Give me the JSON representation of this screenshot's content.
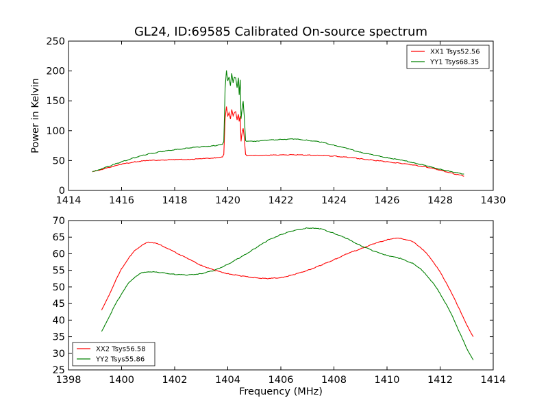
{
  "figure": {
    "title": "GL24, ID:69585 Calibrated On-source spectrum"
  },
  "chart_data": [
    {
      "type": "line",
      "title": "GL24, ID:69585 Calibrated On-source spectrum",
      "xlabel": "",
      "ylabel": "Power in Kelvin",
      "xlim": [
        1414,
        1430
      ],
      "ylim": [
        0,
        250
      ],
      "xticks": [
        "1414",
        "1416",
        "1418",
        "1420",
        "1422",
        "1424",
        "1426",
        "1428",
        "1430"
      ],
      "yticks": [
        "0",
        "50",
        "100",
        "150",
        "200",
        "250"
      ],
      "legend_position": "top-right",
      "grid": false,
      "series": [
        {
          "name": "XX1 Tsys52.56",
          "color": "#ff0000",
          "x": [
            1414.9,
            1415.5,
            1416,
            1416.5,
            1417,
            1417.5,
            1418,
            1418.5,
            1419,
            1419.5,
            1419.8,
            1419.85,
            1419.9,
            1419.95,
            1420.0,
            1420.05,
            1420.1,
            1420.15,
            1420.2,
            1420.25,
            1420.3,
            1420.35,
            1420.4,
            1420.43,
            1420.47,
            1420.5,
            1420.55,
            1420.58,
            1420.62,
            1420.67,
            1420.72,
            1421,
            1421.5,
            1422,
            1422.5,
            1423,
            1423.5,
            1424,
            1424.5,
            1425,
            1425.5,
            1426,
            1426.5,
            1427,
            1427.5,
            1428,
            1428.5,
            1428.9
          ],
          "y": [
            31,
            38,
            44,
            48,
            50,
            51,
            51.5,
            52,
            53,
            54.5,
            56,
            60,
            120,
            140,
            125,
            130,
            120,
            135,
            125,
            130,
            132,
            118,
            128,
            115,
            125,
            82,
            100,
            104,
            90,
            60,
            58,
            58.5,
            59,
            59.5,
            59.8,
            59.2,
            58.5,
            57.5,
            55.5,
            53,
            50.5,
            48,
            45.5,
            42.5,
            39,
            34,
            28,
            24
          ]
        },
        {
          "name": "YY1 Tsys68.35",
          "color": "#008000",
          "x": [
            1414.9,
            1415.5,
            1416,
            1416.5,
            1417,
            1417.5,
            1418,
            1418.5,
            1419,
            1419.5,
            1419.8,
            1419.85,
            1419.9,
            1419.95,
            1420.0,
            1420.05,
            1420.1,
            1420.15,
            1420.2,
            1420.25,
            1420.3,
            1420.35,
            1420.4,
            1420.43,
            1420.47,
            1420.5,
            1420.55,
            1420.58,
            1420.62,
            1420.67,
            1420.72,
            1421,
            1421.5,
            1422,
            1422.5,
            1423,
            1423.5,
            1424,
            1424.5,
            1425,
            1425.5,
            1426,
            1426.5,
            1427,
            1427.5,
            1428,
            1428.5,
            1428.9
          ],
          "y": [
            31,
            40,
            48,
            55,
            61,
            65,
            68,
            71,
            73,
            75,
            77,
            82,
            170,
            201,
            183,
            190,
            175,
            196,
            180,
            190,
            188,
            172,
            188,
            160,
            185,
            120,
            140,
            150,
            125,
            84,
            82,
            82.5,
            84,
            85.5,
            86,
            84,
            81,
            76,
            70,
            64,
            59,
            55,
            51,
            46.5,
            41,
            35.5,
            30.5,
            27.5
          ]
        }
      ]
    },
    {
      "type": "line",
      "title": "",
      "xlabel": "Frequency (MHz)",
      "ylabel": "",
      "xlim": [
        1398,
        1414
      ],
      "ylim": [
        25,
        70
      ],
      "xticks": [
        "1398",
        "1400",
        "1402",
        "1404",
        "1406",
        "1408",
        "1410",
        "1412",
        "1414"
      ],
      "yticks": [
        "25",
        "30",
        "35",
        "40",
        "45",
        "50",
        "55",
        "60",
        "65",
        "70"
      ],
      "legend_position": "bottom-left",
      "grid": false,
      "series": [
        {
          "name": "XX2 Tsys56.58",
          "color": "#ff0000",
          "x": [
            1399.25,
            1399.5,
            1399.75,
            1400,
            1400.25,
            1400.5,
            1400.75,
            1401,
            1401.25,
            1401.5,
            1401.75,
            1402,
            1402.5,
            1403,
            1403.5,
            1404,
            1404.5,
            1405,
            1405.5,
            1406,
            1406.5,
            1407,
            1407.5,
            1408,
            1408.5,
            1409,
            1409.5,
            1410,
            1410.25,
            1410.5,
            1410.75,
            1411,
            1411.25,
            1411.5,
            1411.75,
            1412,
            1412.25,
            1412.5,
            1412.75,
            1413,
            1413.25
          ],
          "y": [
            43,
            47,
            51.5,
            55.5,
            58.5,
            61,
            62.5,
            63.5,
            63.3,
            62.5,
            61.5,
            60.5,
            58.5,
            56.5,
            55,
            54,
            53.3,
            52.8,
            52.5,
            52.8,
            53.7,
            55,
            56.5,
            58.2,
            60,
            61.5,
            63,
            64.2,
            64.7,
            64.6,
            64.2,
            63.5,
            62,
            60,
            57.5,
            54.5,
            51,
            47,
            43,
            38.5,
            35
          ]
        },
        {
          "name": "YY2 Tsys55.86",
          "color": "#008000",
          "x": [
            1399.25,
            1399.5,
            1399.75,
            1400,
            1400.25,
            1400.5,
            1400.75,
            1401,
            1401.5,
            1402,
            1402.5,
            1403,
            1403.5,
            1404,
            1404.5,
            1405,
            1405.5,
            1406,
            1406.5,
            1407,
            1407.5,
            1408,
            1408.5,
            1409,
            1409.5,
            1410,
            1410.5,
            1411,
            1411.25,
            1411.5,
            1411.75,
            1412,
            1412.25,
            1412.5,
            1412.75,
            1413,
            1413.25
          ],
          "y": [
            36.5,
            40.5,
            44.5,
            48,
            51,
            53,
            54.2,
            54.6,
            54.3,
            53.8,
            53.6,
            54,
            55,
            56.8,
            59,
            61.5,
            64,
            65.8,
            67,
            67.8,
            67.5,
            66.2,
            64.5,
            62.5,
            60.8,
            59.5,
            58.6,
            57,
            55.5,
            53.5,
            51,
            48,
            44.5,
            40.5,
            36,
            31.5,
            28
          ]
        }
      ]
    }
  ]
}
